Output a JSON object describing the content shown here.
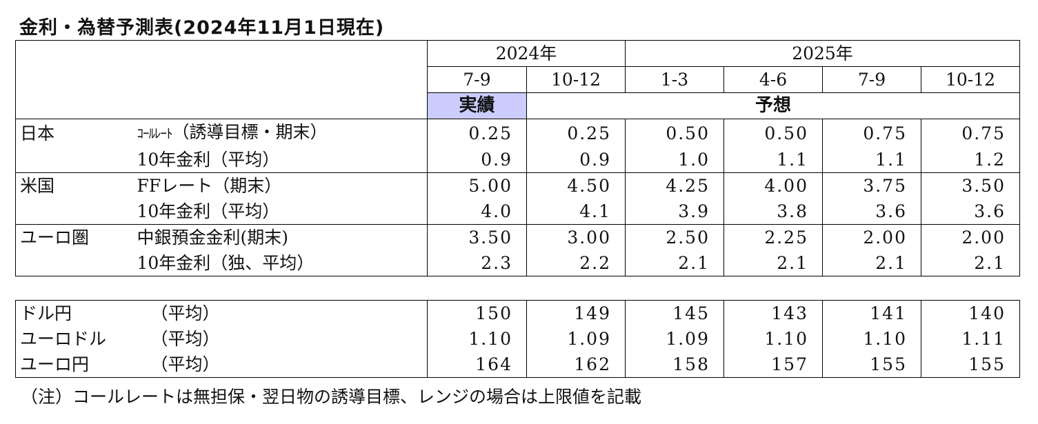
{
  "title": "金利・為替予測表(2024年11月1日現在)",
  "header": {
    "years": [
      "2024年",
      "2025年"
    ],
    "quarters": [
      "7-9",
      "10-12",
      "1-3",
      "4-6",
      "7-9",
      "10-12"
    ],
    "actual_label": "実績",
    "forecast_label": "予想"
  },
  "rates": [
    {
      "region": "日本",
      "rows": [
        {
          "label_prefix": "ｺｰﾙﾚｰﾄ",
          "label": "（誘導目標・期末）",
          "values": [
            "0.25",
            "0.25",
            "0.50",
            "0.50",
            "0.75",
            "0.75"
          ]
        },
        {
          "label_prefix": "",
          "label": "10年金利（平均）",
          "values": [
            "0.9",
            "0.9",
            "1.0",
            "1.1",
            "1.1",
            "1.2"
          ]
        }
      ]
    },
    {
      "region": "米国",
      "rows": [
        {
          "label_prefix": "",
          "label": "FFレート（期末）",
          "values": [
            "5.00",
            "4.50",
            "4.25",
            "4.00",
            "3.75",
            "3.50"
          ]
        },
        {
          "label_prefix": "",
          "label": "10年金利（平均）",
          "values": [
            "4.0",
            "4.1",
            "3.9",
            "3.8",
            "3.6",
            "3.6"
          ]
        }
      ]
    },
    {
      "region": "ユーロ圏",
      "rows": [
        {
          "label_prefix": "",
          "label": "中銀預金金利(期末)",
          "values": [
            "3.50",
            "3.00",
            "2.50",
            "2.25",
            "2.00",
            "2.00"
          ]
        },
        {
          "label_prefix": "",
          "label": "10年金利（独、平均）",
          "values": [
            "2.3",
            "2.2",
            "2.1",
            "2.1",
            "2.1",
            "2.1"
          ]
        }
      ]
    }
  ],
  "fx": [
    {
      "pair": "ドル円",
      "label": "（平均）",
      "values": [
        "150",
        "149",
        "145",
        "143",
        "141",
        "140"
      ]
    },
    {
      "pair": "ユーロドル",
      "label": "（平均）",
      "values": [
        "1.10",
        "1.09",
        "1.09",
        "1.10",
        "1.10",
        "1.11"
      ]
    },
    {
      "pair": "ユーロ円",
      "label": "（平均）",
      "values": [
        "164",
        "162",
        "158",
        "157",
        "155",
        "155"
      ]
    }
  ],
  "note": "（注）コールレートは無担保・翌日物の誘導目標、レンジの場合は上限値を記載"
}
